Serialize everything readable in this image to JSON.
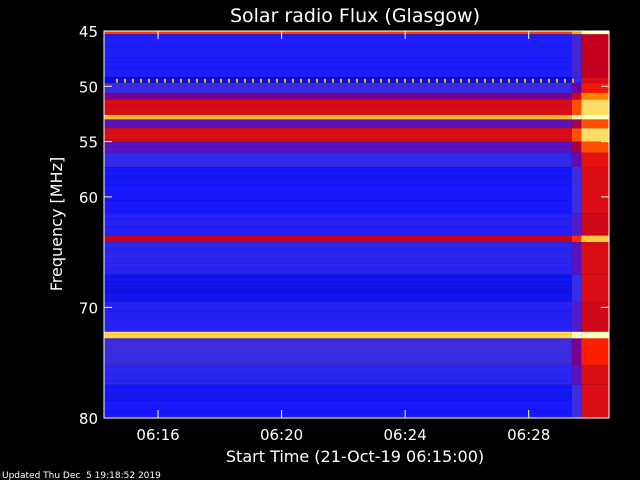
{
  "chart_data": {
    "type": "heatmap",
    "title": "Solar radio Flux (Glasgow)",
    "xlabel": "Start Time (21-Oct-19 06:15:00)",
    "ylabel": "Frequency [MHz]",
    "footer": "Updated Thu Dec  5 19:18:52 2019",
    "x_axis": {
      "unit": "minutes after 06:15:00",
      "range": [
        -0.75,
        15.6
      ],
      "ticks": [
        {
          "value": 1,
          "label": "06:16"
        },
        {
          "value": 5,
          "label": "06:20"
        },
        {
          "value": 9,
          "label": "06:24"
        },
        {
          "value": 13,
          "label": "06:28"
        }
      ]
    },
    "y_axis": {
      "unit": "MHz",
      "range": [
        45,
        80
      ],
      "ticks": [
        {
          "value": 45,
          "label": "45"
        },
        {
          "value": 50,
          "label": "50"
        },
        {
          "value": 55,
          "label": "55"
        },
        {
          "value": 60,
          "label": "60"
        },
        {
          "value": 70,
          "label": "70"
        },
        {
          "value": 80,
          "label": "80"
        }
      ]
    },
    "colormap": [
      "#000030",
      "#0000a0",
      "#1818ff",
      "#3a30e0",
      "#7000a0",
      "#c00020",
      "#ff2000",
      "#ff8000",
      "#ffd040",
      "#ffffc0"
    ],
    "data_start_minute": -0.75,
    "burst_start_minute": 14.4,
    "bands": [
      {
        "from": 45.0,
        "to": 45.3,
        "level": 0.7
      },
      {
        "from": 45.3,
        "to": 49.2,
        "level": 0.24
      },
      {
        "from": 49.2,
        "to": 49.7,
        "level": 0.18
      },
      {
        "from": 49.7,
        "to": 50.6,
        "level": 0.32
      },
      {
        "from": 50.6,
        "to": 51.2,
        "level": 0.46
      },
      {
        "from": 51.2,
        "to": 52.6,
        "level": 0.6
      },
      {
        "from": 52.6,
        "to": 53.0,
        "level": 0.86
      },
      {
        "from": 53.0,
        "to": 53.8,
        "level": 0.4
      },
      {
        "from": 53.8,
        "to": 55.0,
        "level": 0.6
      },
      {
        "from": 55.0,
        "to": 56.0,
        "level": 0.4
      },
      {
        "from": 56.0,
        "to": 57.3,
        "level": 0.3
      },
      {
        "from": 57.3,
        "to": 61.5,
        "level": 0.22
      },
      {
        "from": 61.5,
        "to": 63.5,
        "level": 0.26
      },
      {
        "from": 63.5,
        "to": 64.1,
        "level": 0.56
      },
      {
        "from": 64.1,
        "to": 67.0,
        "level": 0.28
      },
      {
        "from": 67.0,
        "to": 69.5,
        "level": 0.2
      },
      {
        "from": 69.5,
        "to": 72.2,
        "level": 0.26
      },
      {
        "from": 72.2,
        "to": 72.8,
        "level": 0.9
      },
      {
        "from": 72.8,
        "to": 75.2,
        "level": 0.34
      },
      {
        "from": 75.2,
        "to": 77.0,
        "level": 0.28
      },
      {
        "from": 77.0,
        "to": 80.0,
        "level": 0.22
      }
    ],
    "dotted_line_mhz": 49.5,
    "grid": false,
    "legend": "none"
  }
}
